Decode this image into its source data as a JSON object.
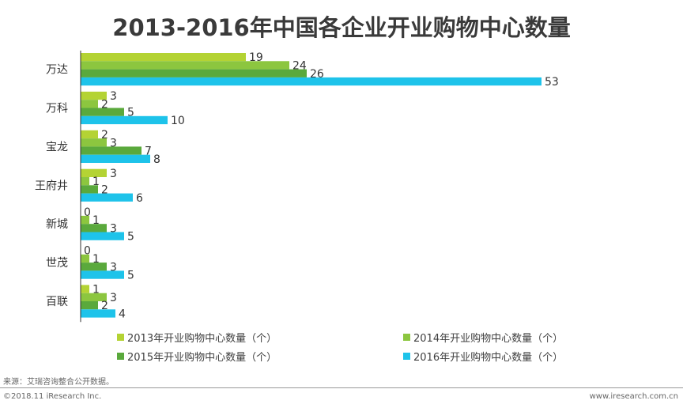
{
  "page": {
    "source": "来源：艾瑞咨询整合公开数据。",
    "copyright": "©2018.11 iResearch Inc.",
    "website": "www.iresearch.com.cn"
  },
  "chart_data": {
    "type": "bar",
    "orientation": "horizontal",
    "title": "2013-2016年中国各企业开业购物中心数量",
    "categories": [
      "万达",
      "万科",
      "宝龙",
      "王府井",
      "新城",
      "世茂",
      "百联"
    ],
    "series": [
      {
        "name": "2013年开业购物中心数量（个）",
        "color": "#b4d334",
        "values": [
          19,
          3,
          2,
          3,
          0,
          0,
          1
        ]
      },
      {
        "name": "2014年开业购物中心数量（个）",
        "color": "#8cc63f",
        "values": [
          24,
          2,
          3,
          1,
          1,
          1,
          3
        ]
      },
      {
        "name": "2015年开业购物中心数量（个）",
        "color": "#5aa93c",
        "values": [
          26,
          5,
          7,
          2,
          3,
          3,
          2
        ]
      },
      {
        "name": "2016年开业购物中心数量（个）",
        "color": "#1ec3ea",
        "values": [
          53,
          10,
          8,
          6,
          5,
          5,
          4
        ]
      }
    ],
    "legend_position": "bottom",
    "grid": false
  }
}
